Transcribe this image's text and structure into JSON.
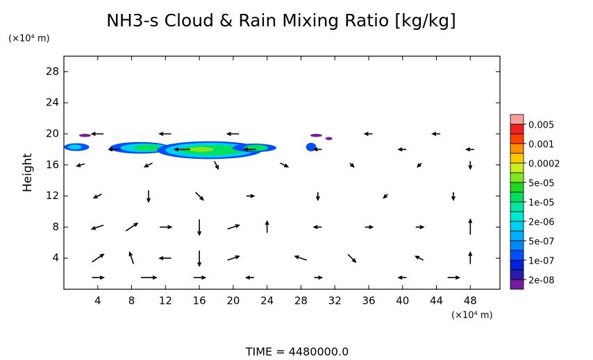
{
  "chart_data": {
    "type": "contour_vector",
    "title": "NH3-s Cloud & Rain Mixing Ratio [kg/kg]",
    "y_unit": "(×10⁴ m)",
    "x_unit": "(×10⁴ m)",
    "y_label": "Height",
    "footer": "TIME = 4480000.0",
    "xlim": [
      0,
      51.5
    ],
    "ylim": [
      0,
      30
    ],
    "xticks": [
      4,
      8,
      12,
      16,
      20,
      24,
      28,
      32,
      36,
      40,
      44,
      48
    ],
    "yticks": [
      4,
      8,
      12,
      16,
      20,
      24,
      28
    ],
    "colorbar": {
      "ticks": [
        {
          "value": 2e-08,
          "label": "2e-08"
        },
        {
          "value": 1e-07,
          "label": "1e-07"
        },
        {
          "value": 5e-07,
          "label": "5e-07"
        },
        {
          "value": 2e-06,
          "label": "2e-06"
        },
        {
          "value": 1e-05,
          "label": "1e-05"
        },
        {
          "value": 5e-05,
          "label": "5e-05"
        },
        {
          "value": 0.0002,
          "label": "0.0002"
        },
        {
          "value": 0.001,
          "label": "0.001"
        },
        {
          "value": 0.005,
          "label": "0.005"
        }
      ],
      "colors": [
        "#7a1aa0",
        "#2a1ab0",
        "#0020e0",
        "#0050ff",
        "#0088ff",
        "#00b0ff",
        "#00d0f0",
        "#00e8d0",
        "#00e8a0",
        "#00e060",
        "#20d820",
        "#80e820",
        "#c8f020",
        "#ffc800",
        "#ff9000",
        "#ff4000",
        "#f02020",
        "#f4a0a0"
      ]
    },
    "regions": [
      {
        "x": 1.5,
        "y": 18.3,
        "rx": 1.5,
        "ry": 0.5,
        "value": 1e-07
      },
      {
        "x": 1.3,
        "y": 18.3,
        "rx": 0.8,
        "ry": 0.3,
        "value": 1e-06
      },
      {
        "x": 9,
        "y": 18.2,
        "rx": 3.6,
        "ry": 0.75,
        "value": 1e-07
      },
      {
        "x": 9.5,
        "y": 18.2,
        "rx": 2.8,
        "ry": 0.55,
        "value": 1e-06
      },
      {
        "x": 10,
        "y": 18.2,
        "rx": 1.8,
        "ry": 0.4,
        "value": 1e-05
      },
      {
        "x": 17.2,
        "y": 17.9,
        "rx": 6.2,
        "ry": 1.15,
        "value": 1e-07
      },
      {
        "x": 17.2,
        "y": 17.9,
        "rx": 5.2,
        "ry": 0.95,
        "value": 1e-06
      },
      {
        "x": 17.5,
        "y": 17.9,
        "rx": 3.8,
        "ry": 0.65,
        "value": 1e-05
      },
      {
        "x": 16.2,
        "y": 18,
        "rx": 1.5,
        "ry": 0.3,
        "value": 5e-05
      },
      {
        "x": 22.5,
        "y": 18.2,
        "rx": 2.6,
        "ry": 0.55,
        "value": 1e-07
      },
      {
        "x": 22.7,
        "y": 18.2,
        "rx": 1.4,
        "ry": 0.4,
        "value": 1e-05
      },
      {
        "x": 29.2,
        "y": 18.3,
        "rx": 0.6,
        "ry": 0.55,
        "value": 1e-07
      },
      {
        "x": 2.5,
        "y": 19.8,
        "rx": 0.7,
        "ry": 0.2,
        "value": 1e-08
      },
      {
        "x": 29.8,
        "y": 19.8,
        "rx": 0.7,
        "ry": 0.2,
        "value": 1e-08
      },
      {
        "x": 31.3,
        "y": 19.4,
        "rx": 0.4,
        "ry": 0.2,
        "value": 1e-08
      }
    ],
    "vectors": {
      "x": [
        4,
        12,
        20,
        36,
        44,
        6,
        14,
        22,
        30,
        40,
        48,
        2,
        10,
        18,
        26,
        34,
        42,
        48,
        4,
        10,
        16,
        22,
        30,
        38,
        46,
        4,
        8,
        12,
        16,
        20,
        24,
        30,
        36,
        42,
        48,
        4,
        8,
        12,
        16,
        20,
        28,
        34,
        42,
        48,
        4,
        10,
        16,
        22,
        30,
        40,
        46
      ],
      "y": [
        20,
        20,
        20,
        20,
        20,
        18,
        18,
        18,
        18,
        18,
        18,
        16,
        16,
        16,
        16,
        16,
        16,
        16,
        12,
        12,
        12,
        12,
        12,
        12,
        12,
        8,
        8,
        8,
        8,
        8,
        8,
        8,
        8,
        8,
        8,
        4,
        4,
        4,
        4,
        4,
        4,
        4,
        4,
        4,
        1.5,
        1.5,
        1.5,
        1.5,
        1.5,
        1.5,
        1.5
      ],
      "u": [
        -1.5,
        -1.5,
        -1.5,
        -1,
        -1,
        -1.5,
        -2,
        -1.5,
        -1,
        -1,
        -1,
        -1,
        -1,
        0.5,
        1,
        0.5,
        -0.5,
        0,
        -1,
        0,
        1,
        1,
        0,
        -0.5,
        0,
        -1.5,
        1.5,
        1.5,
        0,
        1.5,
        0,
        -1,
        1,
        1,
        0,
        1.5,
        -0.5,
        -1.5,
        0,
        1.5,
        -1.5,
        1,
        -1,
        0,
        1.5,
        2,
        1.5,
        -1,
        1,
        -1,
        1.5
      ],
      "v": [
        0,
        0,
        0,
        0,
        0,
        0,
        0,
        0,
        0,
        0,
        0,
        -0.3,
        -0.5,
        -1,
        -0.5,
        -0.5,
        -0.5,
        -1,
        -0.5,
        -1.5,
        -1,
        0,
        -1,
        -0.5,
        -1,
        -0.5,
        1,
        0,
        -2,
        0.5,
        1.5,
        0,
        0,
        0,
        2,
        1,
        1.5,
        0,
        -2,
        0.5,
        0.5,
        -1,
        0.5,
        1.5,
        0,
        0,
        0,
        0,
        0,
        0,
        0
      ]
    }
  }
}
